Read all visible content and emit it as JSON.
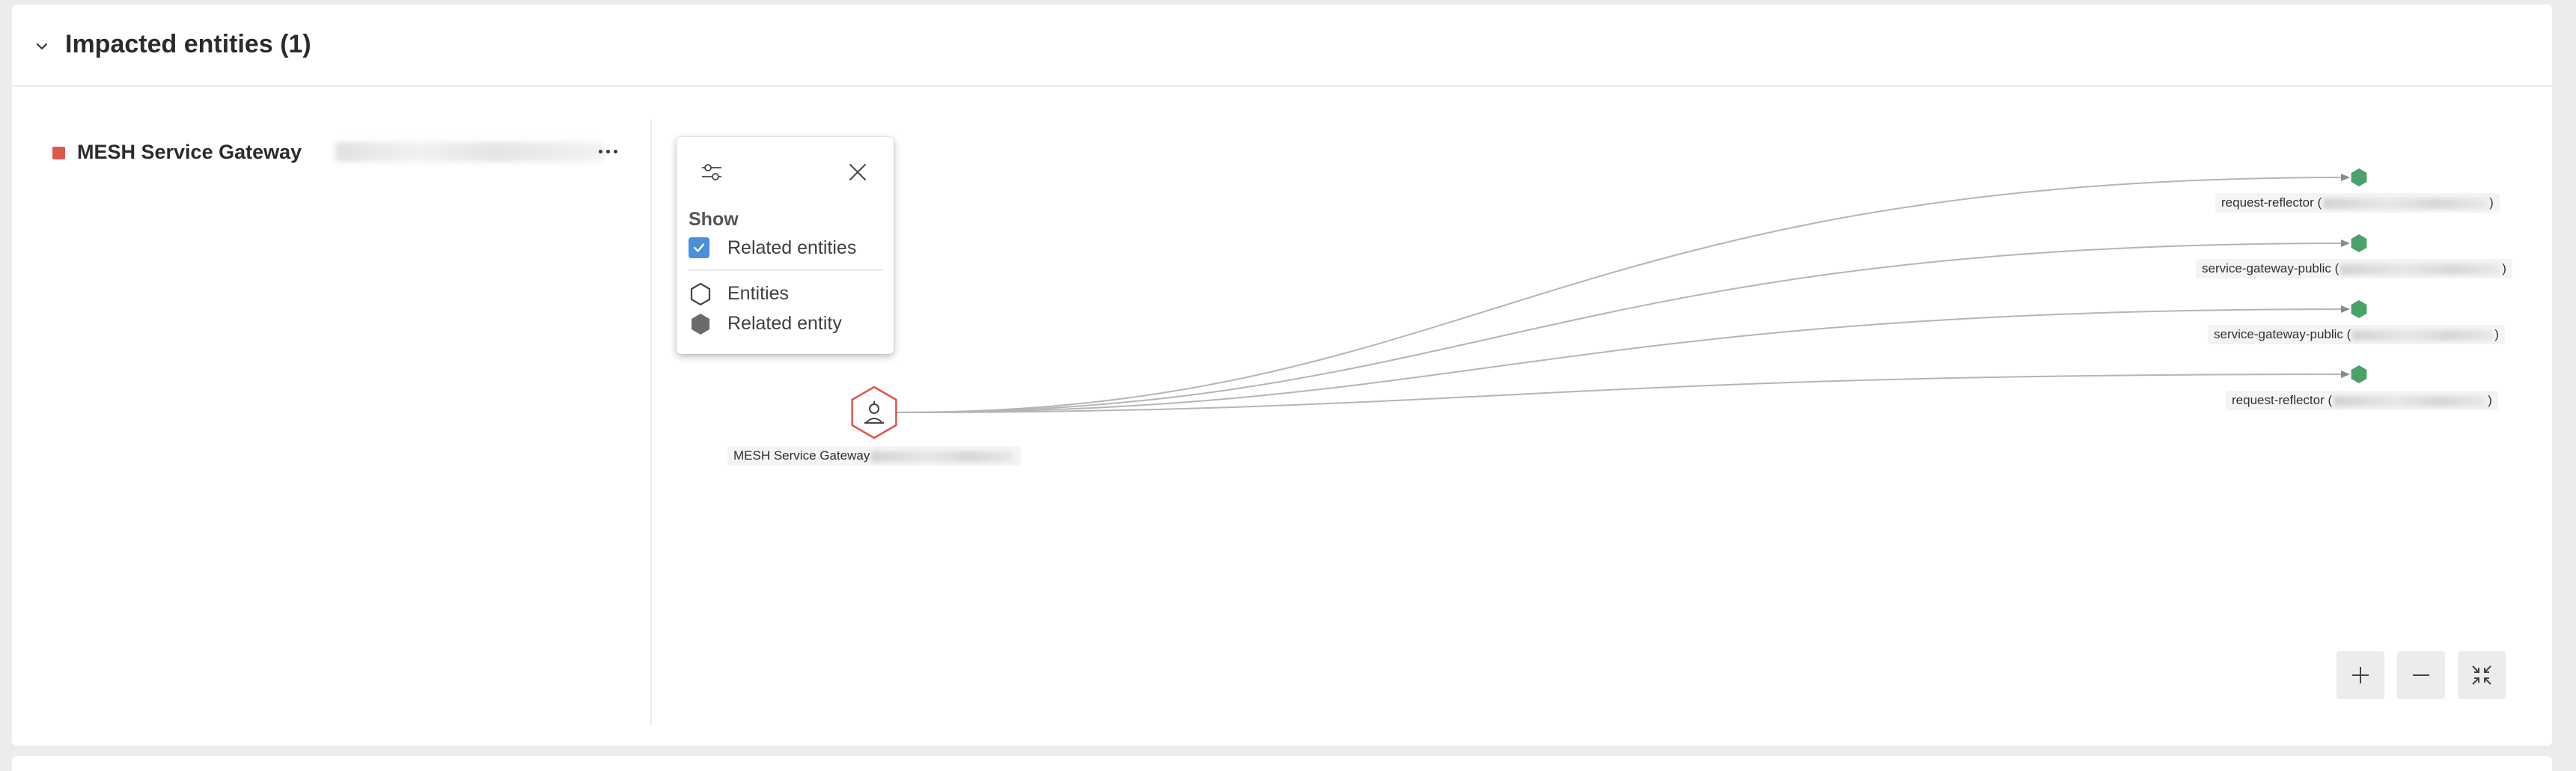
{
  "panel": {
    "title": "Impacted entities (1)",
    "chevron_icon": "chevron-down-icon"
  },
  "entity_list": {
    "items": [
      {
        "name": "MESH Service Gateway",
        "severity_color": "#dc5a4c",
        "more_icon": "more-horizontal-icon"
      }
    ]
  },
  "graph": {
    "root": {
      "label": "MESH Service Gateway",
      "icon": "service-gateway-icon"
    },
    "nodes": [
      {
        "label_prefix": "request-reflector (",
        "label_suffix": ")"
      },
      {
        "label_prefix": "service-gateway-public (",
        "label_suffix": ")"
      },
      {
        "label_prefix": "service-gateway-public (",
        "label_suffix": ")"
      },
      {
        "label_prefix": "request-reflector (",
        "label_suffix": ")"
      }
    ],
    "node_color": "#4aa26a",
    "root_color": "#e0544a",
    "edge_color": "#b5b5b5"
  },
  "popover": {
    "show_heading": "Show",
    "related_entities_label": "Related entities",
    "related_entities_checked": true,
    "legend": [
      {
        "icon": "hexagon-outline-icon",
        "label": "Entities"
      },
      {
        "icon": "hexagon-filled-icon",
        "label": "Related entity"
      }
    ],
    "filter_icon": "settings-sliders-icon",
    "close_icon": "close-icon"
  },
  "zoom_controls": {
    "zoom_in_icon": "plus-icon",
    "zoom_out_icon": "minus-icon",
    "fit_icon": "collapse-arrows-icon"
  }
}
